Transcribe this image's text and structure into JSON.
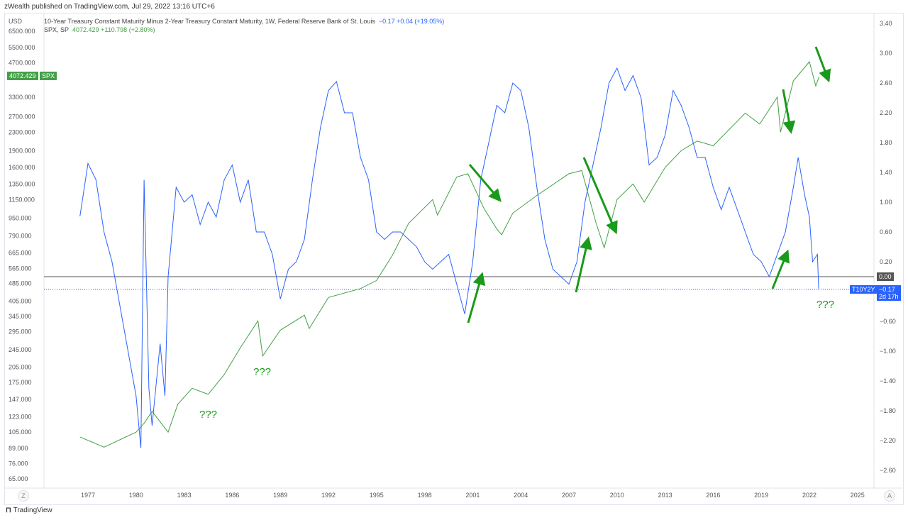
{
  "header": {
    "published": "zWealth published on TradingView.com, Jul 29, 2022 13:16 UTC+6"
  },
  "legend": {
    "series1_title": "10-Year Treasury Constant Maturity Minus 2-Year Treasury Constant Maturity, 1W, Federal Reserve Bank of St. Louis",
    "series1_values": "−0.17  +0.04 (+19.05%)",
    "series2_title": "SPX, SP",
    "series2_values": "4072.429  +110.798 (+2.80%)"
  },
  "badges": {
    "spx_price": "4072.429",
    "spx_label": "SPX",
    "zero": "0.00",
    "t10_label": "T10Y2Y",
    "t10_value": "−0.17",
    "t10_time": "2d 17h"
  },
  "annotations": [
    "???",
    "???",
    "???"
  ],
  "footer": {
    "logo": "TradingView",
    "left_button": "Z",
    "right_button": "A"
  },
  "colors": {
    "spx": "#43a047",
    "t10": "#2962ff",
    "arrow": "#1a9a1a"
  },
  "chart_data": {
    "type": "line",
    "left_axis": {
      "label": "USD",
      "scale": "log",
      "ticks": [
        "6500.000",
        "5500.000",
        "4700.000",
        "3300.000",
        "2700.000",
        "2300.000",
        "1900.000",
        "1600.000",
        "1350.000",
        "1150.000",
        "950.000",
        "790.000",
        "665.000",
        "565.000",
        "485.000",
        "405.000",
        "345.000",
        "295.000",
        "245.000",
        "205.000",
        "175.000",
        "147.000",
        "123.000",
        "105.000",
        "89.000",
        "76.000",
        "65.000"
      ]
    },
    "right_axis": {
      "ticks": [
        "3.40",
        "3.00",
        "2.60",
        "2.20",
        "1.80",
        "1.40",
        "1.00",
        "0.60",
        "0.20",
        "−0.60",
        "−1.00",
        "−1.40",
        "−1.80",
        "−2.20",
        "−2.60"
      ]
    },
    "x_ticks": [
      "1977",
      "1980",
      "1983",
      "1986",
      "1989",
      "1992",
      "1995",
      "1998",
      "2001",
      "2004",
      "2007",
      "2010",
      "2013",
      "2016",
      "2019",
      "2022",
      "2025"
    ],
    "series": [
      {
        "name": "SPX",
        "axis": "left",
        "points": [
          [
            1976.5,
            100
          ],
          [
            1978,
            90
          ],
          [
            1980,
            105
          ],
          [
            1980.5,
            115
          ],
          [
            1981,
            130
          ],
          [
            1982,
            105
          ],
          [
            1982.6,
            140
          ],
          [
            1983.5,
            165
          ],
          [
            1984.5,
            155
          ],
          [
            1985.5,
            190
          ],
          [
            1986.5,
            250
          ],
          [
            1987.6,
            330
          ],
          [
            1987.9,
            230
          ],
          [
            1989,
            300
          ],
          [
            1990.5,
            350
          ],
          [
            1990.8,
            305
          ],
          [
            1992,
            420
          ],
          [
            1994,
            460
          ],
          [
            1995,
            500
          ],
          [
            1996,
            650
          ],
          [
            1997,
            900
          ],
          [
            1998.5,
            1150
          ],
          [
            1998.8,
            980
          ],
          [
            2000,
            1450
          ],
          [
            2000.7,
            1500
          ],
          [
            2001.7,
            1050
          ],
          [
            2002.5,
            850
          ],
          [
            2002.8,
            800
          ],
          [
            2003.5,
            1000
          ],
          [
            2005,
            1200
          ],
          [
            2007,
            1500
          ],
          [
            2007.8,
            1550
          ],
          [
            2008.7,
            900
          ],
          [
            2009.2,
            700
          ],
          [
            2010,
            1150
          ],
          [
            2011,
            1350
          ],
          [
            2011.7,
            1120
          ],
          [
            2013,
            1600
          ],
          [
            2014,
            1900
          ],
          [
            2015,
            2100
          ],
          [
            2016,
            2000
          ],
          [
            2018,
            2800
          ],
          [
            2018.9,
            2500
          ],
          [
            2020,
            3300
          ],
          [
            2020.2,
            2300
          ],
          [
            2021,
            3900
          ],
          [
            2022,
            4750
          ],
          [
            2022.4,
            3700
          ],
          [
            2022.6,
            4072
          ]
        ]
      },
      {
        "name": "T10Y2Y",
        "axis": "right",
        "points": [
          [
            1976.5,
            0.81
          ],
          [
            1977,
            1.52
          ],
          [
            1977.5,
            1.3
          ],
          [
            1978,
            0.6
          ],
          [
            1978.5,
            0.2
          ],
          [
            1979,
            -0.4
          ],
          [
            1979.5,
            -1.0
          ],
          [
            1980,
            -1.6
          ],
          [
            1980.3,
            -2.3
          ],
          [
            1980.5,
            1.3
          ],
          [
            1980.8,
            -1.5
          ],
          [
            1981,
            -2.0
          ],
          [
            1981.5,
            -0.9
          ],
          [
            1981.8,
            -1.6
          ],
          [
            1982,
            0.0
          ],
          [
            1982.5,
            1.2
          ],
          [
            1983,
            1.0
          ],
          [
            1983.5,
            1.1
          ],
          [
            1984,
            0.7
          ],
          [
            1984.5,
            1.0
          ],
          [
            1985,
            0.8
          ],
          [
            1985.5,
            1.3
          ],
          [
            1986,
            1.5
          ],
          [
            1986.5,
            1.0
          ],
          [
            1987,
            1.3
          ],
          [
            1987.5,
            0.6
          ],
          [
            1988,
            0.6
          ],
          [
            1988.5,
            0.3
          ],
          [
            1989,
            -0.3
          ],
          [
            1989.5,
            0.1
          ],
          [
            1990,
            0.2
          ],
          [
            1990.5,
            0.5
          ],
          [
            1991,
            1.3
          ],
          [
            1991.5,
            2.0
          ],
          [
            1992,
            2.5
          ],
          [
            1992.5,
            2.62
          ],
          [
            1993,
            2.2
          ],
          [
            1993.5,
            2.2
          ],
          [
            1994,
            1.6
          ],
          [
            1994.5,
            1.3
          ],
          [
            1995,
            0.6
          ],
          [
            1995.5,
            0.5
          ],
          [
            1996,
            0.6
          ],
          [
            1996.5,
            0.6
          ],
          [
            1997,
            0.5
          ],
          [
            1997.5,
            0.4
          ],
          [
            1998,
            0.2
          ],
          [
            1998.5,
            0.1
          ],
          [
            1999,
            0.2
          ],
          [
            1999.5,
            0.3
          ],
          [
            2000,
            -0.1
          ],
          [
            2000.5,
            -0.5
          ],
          [
            2001,
            0.2
          ],
          [
            2001.5,
            1.3
          ],
          [
            2002,
            1.8
          ],
          [
            2002.5,
            2.3
          ],
          [
            2003,
            2.2
          ],
          [
            2003.5,
            2.6
          ],
          [
            2004,
            2.5
          ],
          [
            2004.5,
            2.0
          ],
          [
            2005,
            1.2
          ],
          [
            2005.5,
            0.5
          ],
          [
            2006,
            0.1
          ],
          [
            2006.5,
            0.0
          ],
          [
            2007,
            -0.1
          ],
          [
            2007.5,
            0.2
          ],
          [
            2008,
            1.0
          ],
          [
            2008.5,
            1.5
          ],
          [
            2009,
            2.0
          ],
          [
            2009.5,
            2.6
          ],
          [
            2010,
            2.8
          ],
          [
            2010.5,
            2.5
          ],
          [
            2011,
            2.7
          ],
          [
            2011.5,
            2.4
          ],
          [
            2012,
            1.5
          ],
          [
            2012.5,
            1.6
          ],
          [
            2013,
            1.9
          ],
          [
            2013.5,
            2.5
          ],
          [
            2014,
            2.3
          ],
          [
            2014.5,
            2.0
          ],
          [
            2015,
            1.6
          ],
          [
            2015.5,
            1.6
          ],
          [
            2016,
            1.2
          ],
          [
            2016.5,
            0.9
          ],
          [
            2017,
            1.2
          ],
          [
            2017.5,
            0.9
          ],
          [
            2018,
            0.6
          ],
          [
            2018.5,
            0.3
          ],
          [
            2019,
            0.2
          ],
          [
            2019.5,
            0.0
          ],
          [
            2020,
            0.3
          ],
          [
            2020.5,
            0.6
          ],
          [
            2021,
            1.2
          ],
          [
            2021.3,
            1.6
          ],
          [
            2021.7,
            1.1
          ],
          [
            2022,
            0.8
          ],
          [
            2022.2,
            0.2
          ],
          [
            2022.5,
            0.3
          ],
          [
            2022.58,
            -0.17
          ]
        ]
      }
    ]
  }
}
